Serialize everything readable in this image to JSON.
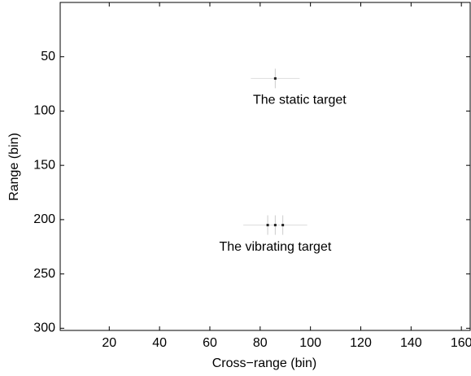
{
  "chart_data": {
    "type": "image",
    "xlabel": "Cross−range (bin)",
    "ylabel": "Range (bin)",
    "xlim": [
      0.5,
      163.5
    ],
    "ylim": [
      0,
      302
    ],
    "y_reversed": true,
    "xticks": [
      20,
      40,
      60,
      80,
      100,
      120,
      140,
      160
    ],
    "yticks": [
      50,
      100,
      150,
      200,
      250,
      300
    ],
    "targets": [
      {
        "label": "The static target",
        "x": [
          86
        ],
        "y": [
          70
        ]
      },
      {
        "label": "The vibrating target",
        "x": [
          83,
          86,
          89
        ],
        "y": [
          205,
          205,
          205
        ]
      }
    ]
  }
}
